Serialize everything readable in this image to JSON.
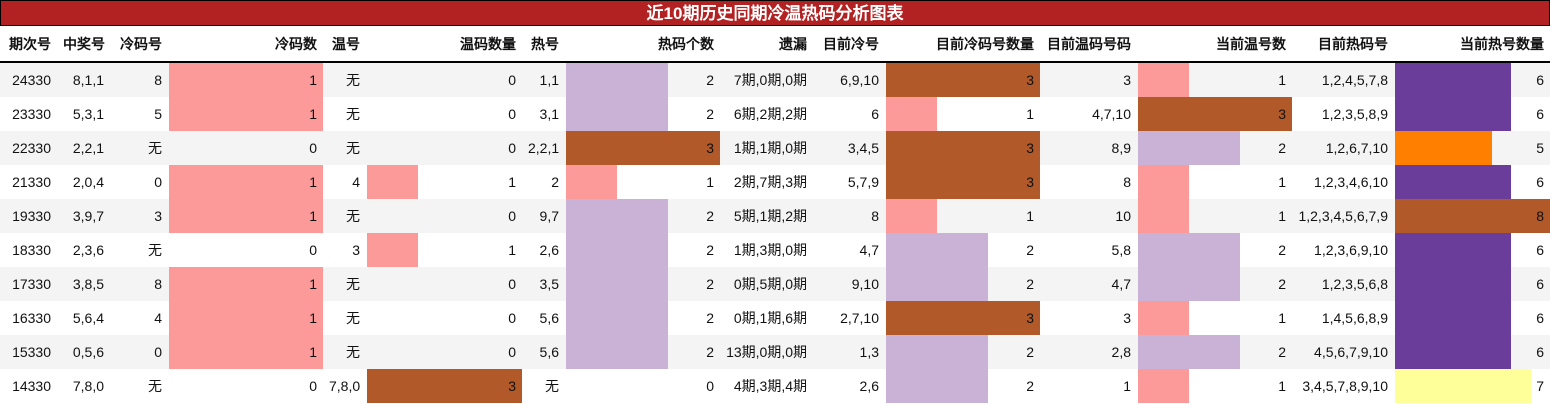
{
  "title": "近10期历史同期冷温热码分析图表",
  "columns": [
    "期次号",
    "中奖号",
    "冷码号",
    "冷码数",
    "温号",
    "温码数量",
    "热号",
    "热码个数",
    "遗漏",
    "目前冷号",
    "目前冷码号数量",
    "目前温码号码",
    "当前温号数",
    "目前热码号",
    "当前热号数量"
  ],
  "bar_columns": [
    3,
    5,
    7,
    10,
    12,
    14
  ],
  "bar_colors": {
    "1": "#fb9a99",
    "2": "#cab2d6",
    "3": "#b15928",
    "5": "#ff7f00",
    "6": "#6a3d9a",
    "7": "#ffff99",
    "8": "#b15928"
  },
  "rows": [
    [
      "24330",
      "8,1,1",
      "8",
      "1",
      "无",
      "0",
      "1,1",
      "2",
      "7期,0期,0期",
      "6,9,10",
      "3",
      "3",
      "1",
      "1,2,4,5,7,8",
      "6"
    ],
    [
      "23330",
      "5,3,1",
      "5",
      "1",
      "无",
      "0",
      "3,1",
      "2",
      "6期,2期,2期",
      "6",
      "1",
      "4,7,10",
      "3",
      "1,2,3,5,8,9",
      "6"
    ],
    [
      "22330",
      "2,2,1",
      "无",
      "0",
      "无",
      "0",
      "2,2,1",
      "3",
      "1期,1期,0期",
      "3,4,5",
      "3",
      "8,9",
      "2",
      "1,2,6,7,10",
      "5"
    ],
    [
      "21330",
      "2,0,4",
      "0",
      "1",
      "4",
      "1",
      "2",
      "1",
      "2期,7期,3期",
      "5,7,9",
      "3",
      "8",
      "1",
      "1,2,3,4,6,10",
      "6"
    ],
    [
      "19330",
      "3,9,7",
      "3",
      "1",
      "无",
      "0",
      "9,7",
      "2",
      "5期,1期,2期",
      "8",
      "1",
      "10",
      "1",
      "1,2,3,4,5,6,7,9",
      "8"
    ],
    [
      "18330",
      "2,3,6",
      "无",
      "0",
      "3",
      "1",
      "2,6",
      "2",
      "1期,3期,0期",
      "4,7",
      "2",
      "5,8",
      "2",
      "1,2,3,6,9,10",
      "6"
    ],
    [
      "17330",
      "3,8,5",
      "8",
      "1",
      "无",
      "0",
      "3,5",
      "2",
      "0期,5期,0期",
      "9,10",
      "2",
      "4,7",
      "2",
      "1,2,3,5,6,8",
      "6"
    ],
    [
      "16330",
      "5,6,4",
      "4",
      "1",
      "无",
      "0",
      "5,6",
      "2",
      "0期,1期,6期",
      "2,7,10",
      "3",
      "3",
      "1",
      "1,4,5,6,8,9",
      "6"
    ],
    [
      "15330",
      "0,5,6",
      "0",
      "1",
      "无",
      "0",
      "5,6",
      "2",
      "13期,0期,0期",
      "1,3",
      "2",
      "2,8",
      "2",
      "4,5,6,7,9,10",
      "6"
    ],
    [
      "14330",
      "7,8,0",
      "无",
      "0",
      "7,8,0",
      "3",
      "无",
      "0",
      "4期,3期,4期",
      "2,6",
      "2",
      "1",
      "1",
      "3,4,5,7,8,9,10",
      "7"
    ]
  ]
}
